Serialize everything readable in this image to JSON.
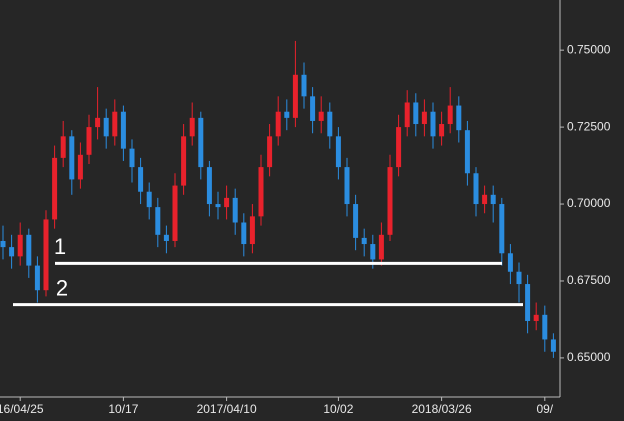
{
  "chart_data": {
    "type": "candlestick",
    "categories": [
      null,
      null,
      "16/04/25",
      null,
      null,
      null,
      null,
      null,
      null,
      null,
      null,
      null,
      null,
      null,
      "10/17",
      null,
      null,
      null,
      null,
      null,
      null,
      null,
      null,
      null,
      null,
      null,
      "2017/04/10",
      null,
      null,
      null,
      null,
      null,
      null,
      null,
      null,
      null,
      null,
      null,
      null,
      "10/02",
      null,
      null,
      null,
      null,
      null,
      null,
      null,
      null,
      null,
      null,
      null,
      "2018/03/26",
      null,
      null,
      null,
      null,
      null,
      null,
      null,
      null,
      null,
      null,
      null,
      "09/",
      null
    ],
    "open": [
      0.688,
      0.686,
      0.683,
      0.69,
      0.68,
      0.672,
      0.695,
      0.715,
      0.722,
      0.708,
      0.716,
      0.725,
      0.728,
      0.722,
      0.73,
      0.718,
      0.712,
      0.704,
      0.699,
      0.69,
      0.688,
      0.706,
      0.722,
      0.728,
      0.712,
      0.7,
      0.699,
      0.702,
      0.694,
      0.687,
      0.696,
      0.712,
      0.722,
      0.73,
      0.728,
      0.742,
      0.735,
      0.727,
      0.73,
      0.722,
      0.712,
      0.7,
      0.689,
      0.687,
      0.682,
      0.69,
      0.712,
      0.725,
      0.733,
      0.726,
      0.73,
      0.722,
      0.726,
      0.732,
      0.724,
      0.71,
      0.7,
      0.703,
      0.7,
      0.684,
      0.678,
      0.674,
      0.662,
      0.664,
      0.656
    ],
    "high": [
      0.693,
      0.69,
      0.694,
      0.692,
      0.683,
      0.698,
      0.719,
      0.727,
      0.724,
      0.72,
      0.729,
      0.738,
      0.731,
      0.734,
      0.732,
      0.721,
      0.715,
      0.707,
      0.702,
      0.693,
      0.71,
      0.726,
      0.733,
      0.73,
      0.714,
      0.704,
      0.706,
      0.705,
      0.697,
      0.7,
      0.716,
      0.726,
      0.735,
      0.734,
      0.753,
      0.746,
      0.738,
      0.735,
      0.733,
      0.725,
      0.715,
      0.703,
      0.692,
      0.69,
      0.694,
      0.716,
      0.729,
      0.737,
      0.736,
      0.734,
      0.733,
      0.73,
      0.738,
      0.735,
      0.727,
      0.712,
      0.706,
      0.706,
      0.702,
      0.687,
      0.681,
      0.677,
      0.668,
      0.667,
      0.658
    ],
    "low": [
      0.682,
      0.679,
      0.68,
      0.676,
      0.668,
      0.67,
      0.692,
      0.712,
      0.703,
      0.705,
      0.713,
      0.721,
      0.718,
      0.719,
      0.714,
      0.707,
      0.7,
      0.695,
      0.686,
      0.684,
      0.686,
      0.703,
      0.719,
      0.708,
      0.696,
      0.695,
      0.695,
      0.69,
      0.683,
      0.684,
      0.693,
      0.709,
      0.719,
      0.724,
      0.725,
      0.731,
      0.723,
      0.723,
      0.718,
      0.708,
      0.696,
      0.685,
      0.683,
      0.679,
      0.68,
      0.688,
      0.709,
      0.722,
      0.722,
      0.722,
      0.718,
      0.719,
      0.723,
      0.72,
      0.706,
      0.696,
      0.697,
      0.694,
      0.68,
      0.674,
      0.668,
      0.658,
      0.659,
      0.652,
      0.65
    ],
    "close": [
      0.686,
      0.683,
      0.69,
      0.68,
      0.672,
      0.695,
      0.715,
      0.722,
      0.708,
      0.716,
      0.725,
      0.728,
      0.722,
      0.73,
      0.718,
      0.712,
      0.704,
      0.699,
      0.69,
      0.688,
      0.706,
      0.722,
      0.728,
      0.712,
      0.7,
      0.699,
      0.702,
      0.694,
      0.687,
      0.696,
      0.712,
      0.722,
      0.73,
      0.728,
      0.742,
      0.735,
      0.727,
      0.73,
      0.722,
      0.712,
      0.7,
      0.689,
      0.687,
      0.682,
      0.69,
      0.712,
      0.725,
      0.733,
      0.726,
      0.73,
      0.722,
      0.726,
      0.732,
      0.724,
      0.71,
      0.7,
      0.703,
      0.7,
      0.684,
      0.678,
      0.674,
      0.662,
      0.664,
      0.656,
      0.652
    ],
    "up_color": "#e8222c",
    "down_color": "#2b8de0",
    "ylim": [
      0.6373,
      0.7663
    ],
    "yticks": [
      {
        "value": 0.65,
        "label": "0.65000"
      },
      {
        "value": 0.675,
        "label": "0.67500"
      },
      {
        "value": 0.7,
        "label": "0.70000"
      },
      {
        "value": 0.725,
        "label": "0.72500"
      },
      {
        "value": 0.75,
        "label": "0.75000"
      }
    ],
    "annotations": [
      {
        "label": "1",
        "value": 0.6807
      },
      {
        "label": "2",
        "value": 0.6673
      }
    ]
  }
}
